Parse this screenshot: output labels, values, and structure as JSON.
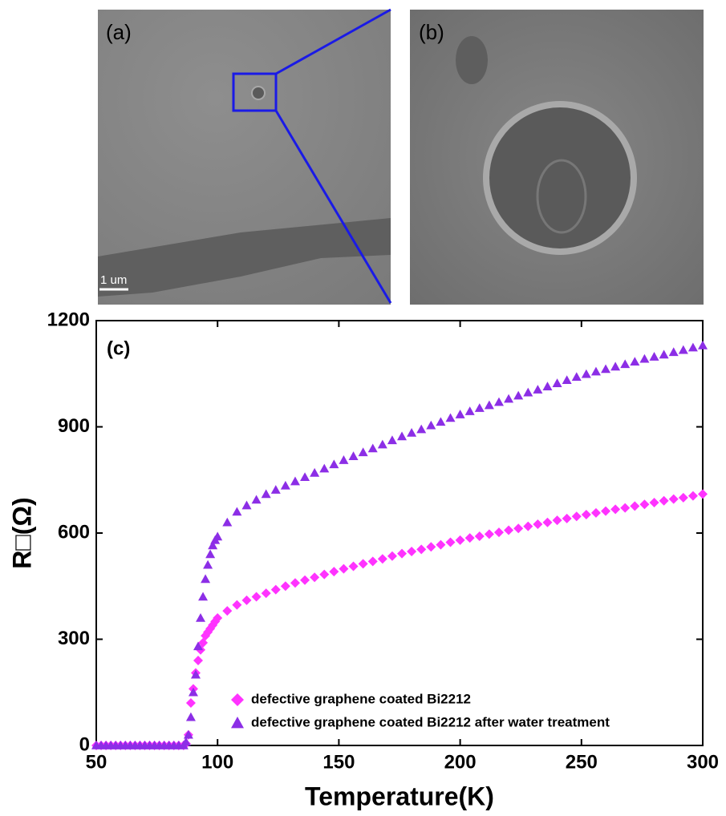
{
  "images": {
    "panels": [
      {
        "label": "(a)"
      },
      {
        "label": "(b)"
      }
    ],
    "scale_bar": "1 um"
  },
  "chart_data": {
    "type": "scatter",
    "annotation": "(c)",
    "xlabel": "Temperature(K)",
    "ylabel": "R□(Ω)",
    "xlim": [
      50,
      300
    ],
    "ylim": [
      0,
      1200
    ],
    "xticks": [
      50,
      100,
      150,
      200,
      250,
      300
    ],
    "yticks": [
      0,
      300,
      600,
      900,
      1200
    ],
    "legend": "lower right",
    "grid": false,
    "x": [
      50,
      52,
      54,
      56,
      58,
      60,
      62,
      64,
      66,
      68,
      70,
      72,
      74,
      76,
      78,
      80,
      82,
      84,
      86,
      87,
      88,
      89,
      90,
      91,
      92,
      93,
      94,
      95,
      96,
      97,
      98,
      99,
      100,
      104,
      108,
      112,
      116,
      120,
      124,
      128,
      132,
      136,
      140,
      144,
      148,
      152,
      156,
      160,
      164,
      168,
      172,
      176,
      180,
      184,
      188,
      192,
      196,
      200,
      204,
      208,
      212,
      216,
      220,
      224,
      228,
      232,
      236,
      240,
      244,
      248,
      252,
      256,
      260,
      264,
      268,
      272,
      276,
      280,
      284,
      288,
      292,
      296,
      300
    ],
    "series": [
      {
        "name": "defective graphene coated Bi2212",
        "color": "#ff33ff",
        "marker": "diamond",
        "values": [
          0,
          0,
          0,
          0,
          0,
          0,
          0,
          0,
          0,
          0,
          0,
          0,
          0,
          0,
          0,
          0,
          0,
          0,
          0,
          5,
          30,
          120,
          160,
          205,
          240,
          270,
          290,
          310,
          320,
          330,
          340,
          350,
          360,
          380,
          397,
          410,
          420,
          430,
          440,
          450,
          459,
          467,
          475,
          483,
          491,
          499,
          506,
          513,
          520,
          527,
          535,
          542,
          548,
          554,
          561,
          567,
          574,
          580,
          586,
          591,
          597,
          602,
          608,
          613,
          619,
          625,
          630,
          636,
          641,
          647,
          652,
          657,
          662,
          667,
          671,
          676,
          681,
          686,
          691,
          696,
          700,
          705,
          710
        ]
      },
      {
        "name": "defective graphene coated Bi2212 after water treatment",
        "color": "#8c2ee6",
        "marker": "triangle",
        "values": [
          0,
          0,
          0,
          0,
          0,
          0,
          0,
          0,
          0,
          0,
          0,
          0,
          0,
          0,
          0,
          0,
          0,
          0,
          0,
          10,
          30,
          80,
          150,
          200,
          280,
          360,
          420,
          470,
          510,
          540,
          565,
          580,
          590,
          630,
          660,
          678,
          694,
          710,
          722,
          734,
          746,
          758,
          770,
          782,
          794,
          806,
          817,
          828,
          839,
          850,
          862,
          873,
          883,
          893,
          904,
          914,
          925,
          935,
          944,
          953,
          961,
          970,
          979,
          988,
          997,
          1005,
          1014,
          1023,
          1032,
          1041,
          1049,
          1056,
          1063,
          1070,
          1077,
          1084,
          1092,
          1098,
          1104,
          1111,
          1117,
          1124,
          1130
        ]
      }
    ]
  }
}
